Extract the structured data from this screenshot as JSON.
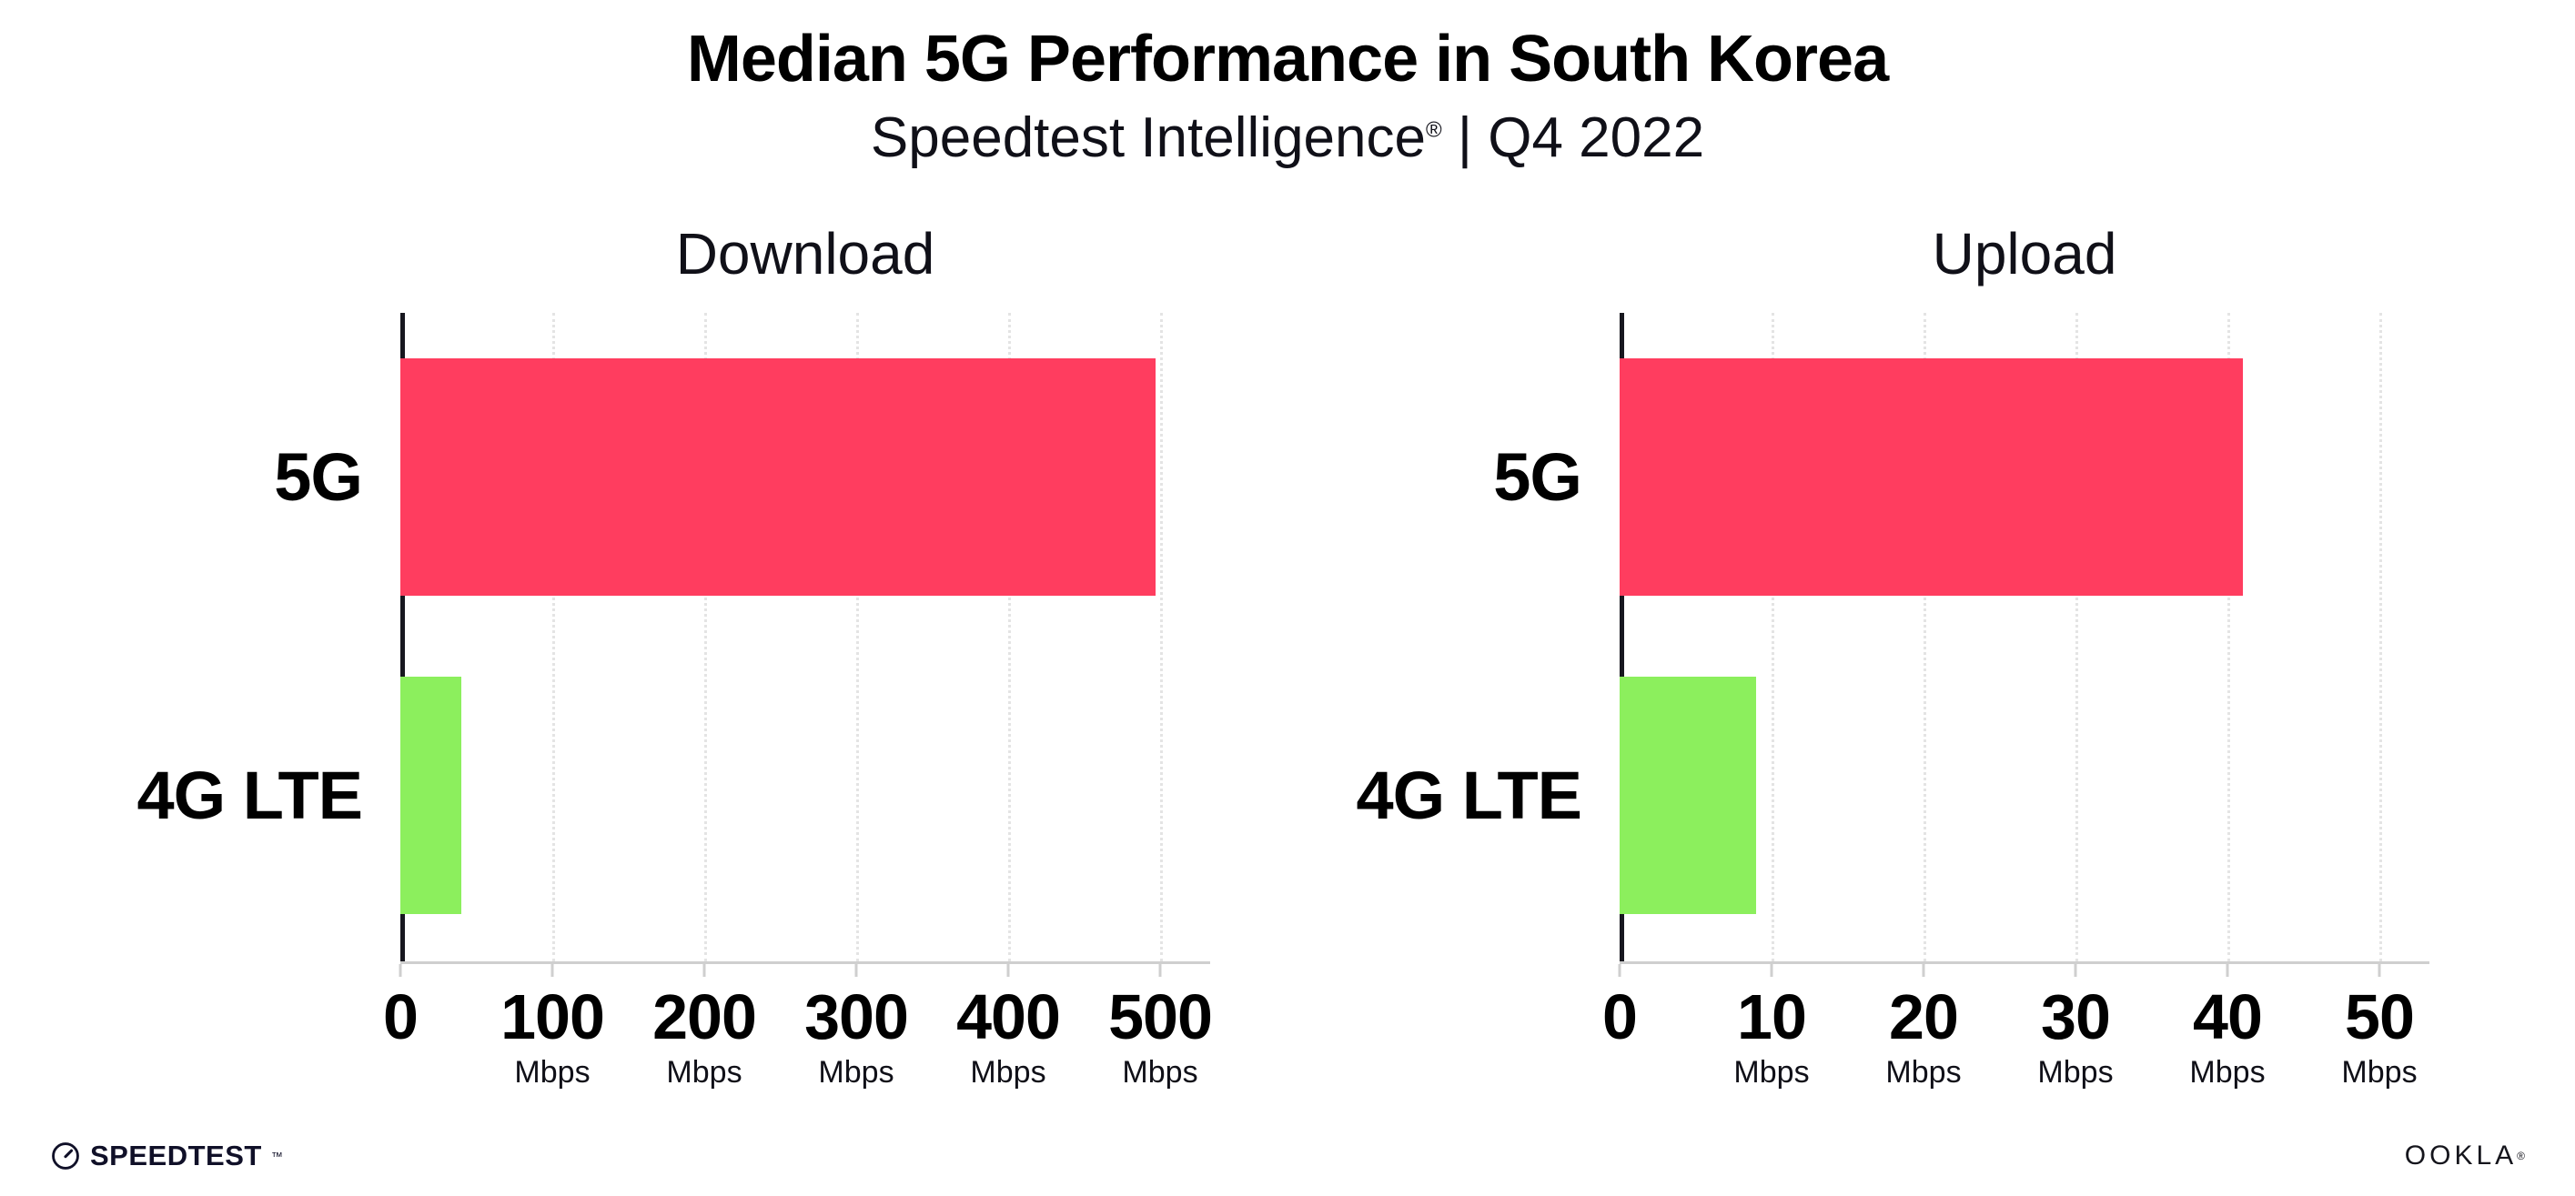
{
  "page": {
    "title": "Median 5G Performance in South Korea",
    "subtitle_brand": "Speedtest Intelligence",
    "subtitle_reg": "®",
    "subtitle_rest": " | Q4 2022"
  },
  "colors": {
    "bar_5g": "#ff3d5f",
    "bar_4g_lte": "#8cef5d",
    "y_axis": "#17171f",
    "x_axis": "#cfcfcf",
    "gridline": "#e4e4e4"
  },
  "chart_data": [
    {
      "type": "bar",
      "orientation": "horizontal",
      "title": "Download",
      "categories": [
        "5G",
        "4G LTE"
      ],
      "values": [
        497,
        40
      ],
      "unit": "Mbps",
      "xlabel": "Mbps",
      "ylabel": "",
      "xlim": [
        0,
        500
      ],
      "ticks": [
        0,
        100,
        200,
        300,
        400,
        500
      ],
      "bar_colors": [
        "#ff3d5f",
        "#8cef5d"
      ],
      "grid": "dotted-vertical",
      "legend": "none"
    },
    {
      "type": "bar",
      "orientation": "horizontal",
      "title": "Upload",
      "categories": [
        "5G",
        "4G LTE"
      ],
      "values": [
        41,
        9
      ],
      "unit": "Mbps",
      "xlabel": "Mbps",
      "ylabel": "",
      "xlim": [
        0,
        50
      ],
      "ticks": [
        0,
        10,
        20,
        30,
        40,
        50
      ],
      "bar_colors": [
        "#ff3d5f",
        "#8cef5d"
      ],
      "grid": "dotted-vertical",
      "legend": "none"
    }
  ],
  "footer": {
    "speedtest_label": "SPEEDTEST",
    "speedtest_tm": "™",
    "ookla_label": "OOKLA",
    "ookla_reg": "®"
  }
}
